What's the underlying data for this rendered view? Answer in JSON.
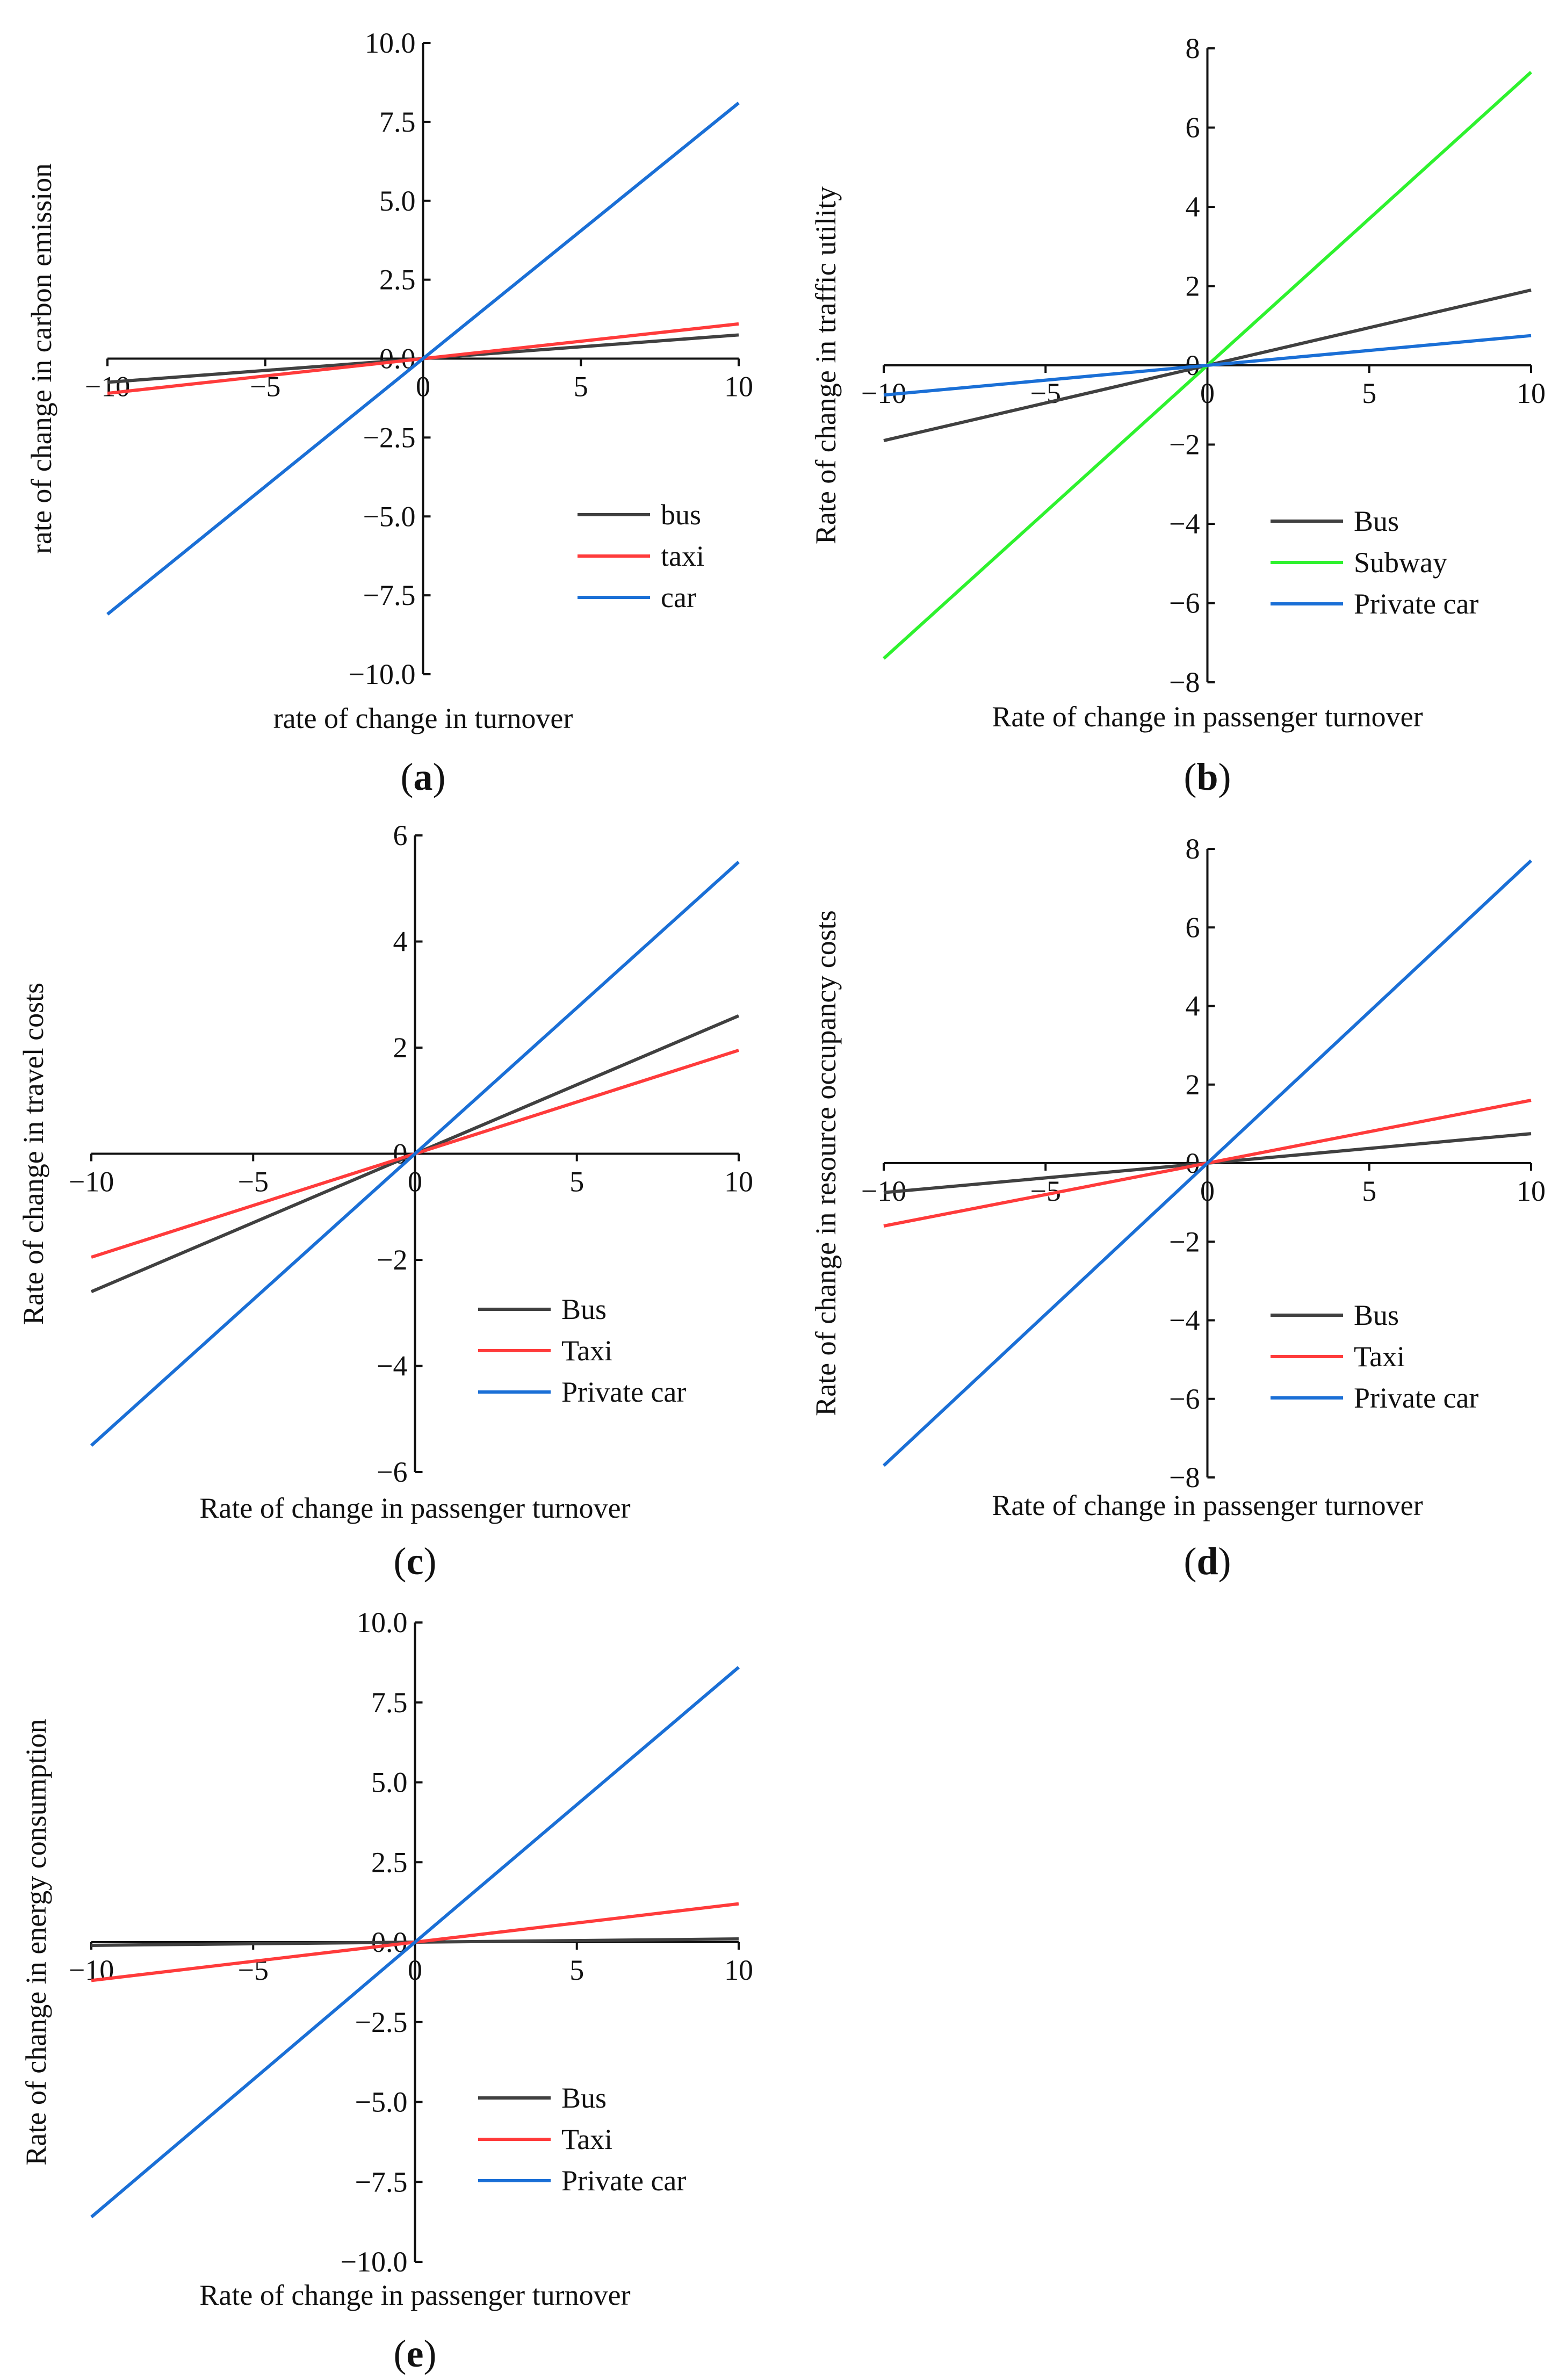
{
  "colors": {
    "bus": "#404040",
    "taxi": "#ff3b3b",
    "subway": "#2ef22e",
    "car": "#1a6fd6",
    "axis": "#111111"
  },
  "chart_data": [
    {
      "id": "a",
      "type": "line",
      "caption": {
        "open": "(",
        "label": "a",
        "close": ")"
      },
      "xlabel": "rate of change in turnover",
      "ylabel": "rate of change in carbon emission",
      "xlim": [
        -10,
        10
      ],
      "ylim": [
        -10,
        10
      ],
      "xticks": [
        -10,
        -5,
        0,
        5,
        10
      ],
      "xtick_labels": [
        "−10",
        "−5",
        "0",
        "5",
        "10"
      ],
      "yticks": [
        10,
        7.5,
        5,
        2.5,
        0,
        -2.5,
        -5,
        -7.5,
        -10
      ],
      "ytick_labels": [
        "10.0",
        "7.5",
        "5.0",
        "2.5",
        "0.0",
        "−2.5",
        "−5.0",
        "−7.5",
        "−10.0"
      ],
      "series": [
        {
          "name": "bus",
          "color_key": "bus",
          "x": [
            -10,
            10
          ],
          "values": [
            -0.75,
            0.75
          ]
        },
        {
          "name": "taxi",
          "color_key": "taxi",
          "x": [
            -10,
            10
          ],
          "values": [
            -1.1,
            1.1
          ]
        },
        {
          "name": "car",
          "color_key": "car",
          "x": [
            -10,
            10
          ],
          "values": [
            -8.1,
            8.1
          ]
        }
      ],
      "legend": "bottom-right"
    },
    {
      "id": "b",
      "type": "line",
      "caption": {
        "open": "(",
        "label": "b",
        "close": ")"
      },
      "xlabel": "Rate of change in passenger turnover",
      "ylabel": "Rate of change in traffic utility",
      "xlim": [
        -10,
        10
      ],
      "ylim": [
        -8,
        8
      ],
      "xticks": [
        -10,
        -5,
        0,
        5,
        10
      ],
      "xtick_labels": [
        "−10",
        "−5",
        "0",
        "5",
        "10"
      ],
      "yticks": [
        8,
        6,
        4,
        2,
        0,
        -2,
        -4,
        -6,
        -8
      ],
      "ytick_labels": [
        "8",
        "6",
        "4",
        "2",
        "0",
        "−2",
        "−4",
        "−6",
        "−8"
      ],
      "series": [
        {
          "name": "Bus",
          "color_key": "bus",
          "x": [
            -10,
            10
          ],
          "values": [
            -1.9,
            1.9
          ]
        },
        {
          "name": "Subway",
          "color_key": "subway",
          "x": [
            -10,
            10
          ],
          "values": [
            -7.4,
            7.4
          ]
        },
        {
          "name": "Private car",
          "color_key": "car",
          "x": [
            -10,
            10
          ],
          "values": [
            -0.75,
            0.75
          ]
        }
      ],
      "legend": "bottom-right"
    },
    {
      "id": "c",
      "type": "line",
      "caption": {
        "open": "(",
        "label": "c",
        "close": ")"
      },
      "xlabel": "Rate of change in passenger turnover",
      "ylabel": "Rate of change in travel costs",
      "xlim": [
        -10,
        10
      ],
      "ylim": [
        -6,
        6
      ],
      "xticks": [
        -10,
        -5,
        0,
        5,
        10
      ],
      "xtick_labels": [
        "−10",
        "−5",
        "0",
        "5",
        "10"
      ],
      "yticks": [
        6,
        4,
        2,
        0,
        -2,
        -4,
        -6
      ],
      "ytick_labels": [
        "6",
        "4",
        "2",
        "0",
        "−2",
        "−4",
        "−6"
      ],
      "series": [
        {
          "name": "Bus",
          "color_key": "bus",
          "x": [
            -10,
            10
          ],
          "values": [
            -2.6,
            2.6
          ]
        },
        {
          "name": "Taxi",
          "color_key": "taxi",
          "x": [
            -10,
            10
          ],
          "values": [
            -1.95,
            1.95
          ]
        },
        {
          "name": "Private car",
          "color_key": "car",
          "x": [
            -10,
            10
          ],
          "values": [
            -5.5,
            5.5
          ]
        }
      ],
      "legend": "bottom-right"
    },
    {
      "id": "d",
      "type": "line",
      "caption": {
        "open": "(",
        "label": "d",
        "close": ")"
      },
      "xlabel": "Rate of change in passenger turnover",
      "ylabel": "Rate of change in resource occupancy costs",
      "xlim": [
        -10,
        10
      ],
      "ylim": [
        -8,
        8
      ],
      "xticks": [
        -10,
        -5,
        0,
        5,
        10
      ],
      "xtick_labels": [
        "−10",
        "−5",
        "0",
        "5",
        "10"
      ],
      "yticks": [
        8,
        6,
        4,
        2,
        0,
        -2,
        -4,
        -6,
        -8
      ],
      "ytick_labels": [
        "8",
        "6",
        "4",
        "2",
        "0",
        "−2",
        "−4",
        "−6",
        "−8"
      ],
      "series": [
        {
          "name": "Bus",
          "color_key": "bus",
          "x": [
            -10,
            10
          ],
          "values": [
            -0.75,
            0.75
          ]
        },
        {
          "name": "Taxi",
          "color_key": "taxi",
          "x": [
            -10,
            10
          ],
          "values": [
            -1.6,
            1.6
          ]
        },
        {
          "name": "Private car",
          "color_key": "car",
          "x": [
            -10,
            10
          ],
          "values": [
            -7.7,
            7.7
          ]
        }
      ],
      "legend": "bottom-right"
    },
    {
      "id": "e",
      "type": "line",
      "caption": {
        "open": "(",
        "label": "e",
        "close": ")"
      },
      "xlabel": "Rate of change in passenger turnover",
      "ylabel": "Rate of change in energy consumption",
      "xlim": [
        -10,
        10
      ],
      "ylim": [
        -10,
        10
      ],
      "xticks": [
        -10,
        -5,
        0,
        5,
        10
      ],
      "xtick_labels": [
        "−10",
        "−5",
        "0",
        "5",
        "10"
      ],
      "yticks": [
        10,
        7.5,
        5,
        2.5,
        0,
        -2.5,
        -5,
        -7.5,
        -10
      ],
      "ytick_labels": [
        "10.0",
        "7.5",
        "5.0",
        "2.5",
        "0.0",
        "−2.5",
        "−5.0",
        "−7.5",
        "−10.0"
      ],
      "series": [
        {
          "name": "Bus",
          "color_key": "bus",
          "x": [
            -10,
            10
          ],
          "values": [
            -0.1,
            0.1
          ]
        },
        {
          "name": "Taxi",
          "color_key": "taxi",
          "x": [
            -10,
            10
          ],
          "values": [
            -1.2,
            1.2
          ]
        },
        {
          "name": "Private car",
          "color_key": "car",
          "x": [
            -10,
            10
          ],
          "values": [
            -8.6,
            8.6
          ]
        }
      ],
      "legend": "bottom-right"
    }
  ]
}
